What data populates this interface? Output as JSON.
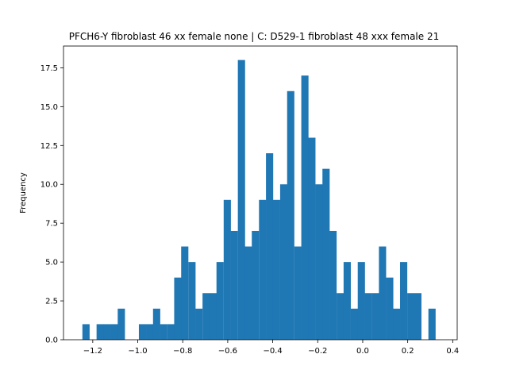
{
  "chart_data": {
    "type": "bar",
    "title": "PFCH6-Y fibroblast 46 xx female none | C: D529-1 fibroblast 48 xxx female 21",
    "xlabel": "",
    "ylabel": "Frequency",
    "xlim": [
      -1.33,
      0.42
    ],
    "ylim": [
      0,
      18.9
    ],
    "bin_width": 0.03137,
    "x_ticks": [
      -1.2,
      -1.0,
      -0.8,
      -0.6,
      -0.4,
      -0.2,
      0.0,
      0.2,
      0.4
    ],
    "x_tick_labels": [
      "−1.2",
      "−1.0",
      "−0.8",
      "−0.6",
      "−0.4",
      "−0.2",
      "0.0",
      "0.2",
      "0.4"
    ],
    "y_ticks": [
      0.0,
      2.5,
      5.0,
      7.5,
      10.0,
      12.5,
      15.0,
      17.5
    ],
    "y_tick_labels": [
      "0.0",
      "2.5",
      "5.0",
      "7.5",
      "10.0",
      "12.5",
      "15.0",
      "17.5"
    ],
    "bins_left_edges": [
      -1.246,
      -1.215,
      -1.183,
      -1.152,
      -1.12,
      -1.089,
      -1.058,
      -1.026,
      -0.995,
      -0.963,
      -0.932,
      -0.901,
      -0.869,
      -0.838,
      -0.807,
      -0.775,
      -0.744,
      -0.712,
      -0.681,
      -0.65,
      -0.618,
      -0.587,
      -0.555,
      -0.524,
      -0.493,
      -0.461,
      -0.43,
      -0.399,
      -0.367,
      -0.336,
      -0.304,
      -0.273,
      -0.242,
      -0.21,
      -0.179,
      -0.148,
      -0.116,
      -0.085,
      -0.053,
      -0.022,
      0.009,
      0.041,
      0.072,
      0.104,
      0.135,
      0.166,
      0.198,
      0.229,
      0.26,
      0.292,
      0.323
    ],
    "values": [
      1,
      0,
      1,
      1,
      1,
      2,
      0,
      0,
      1,
      1,
      2,
      1,
      1,
      4,
      6,
      5,
      2,
      3,
      3,
      5,
      9,
      7,
      18,
      6,
      7,
      9,
      12,
      9,
      10,
      16,
      6,
      17,
      13,
      10,
      11,
      7,
      3,
      5,
      2,
      5,
      3,
      3,
      6,
      4,
      2,
      5,
      3,
      3,
      0,
      2,
      0
    ],
    "bar_color": "#1f77b4",
    "grid": false,
    "legend": "none"
  }
}
